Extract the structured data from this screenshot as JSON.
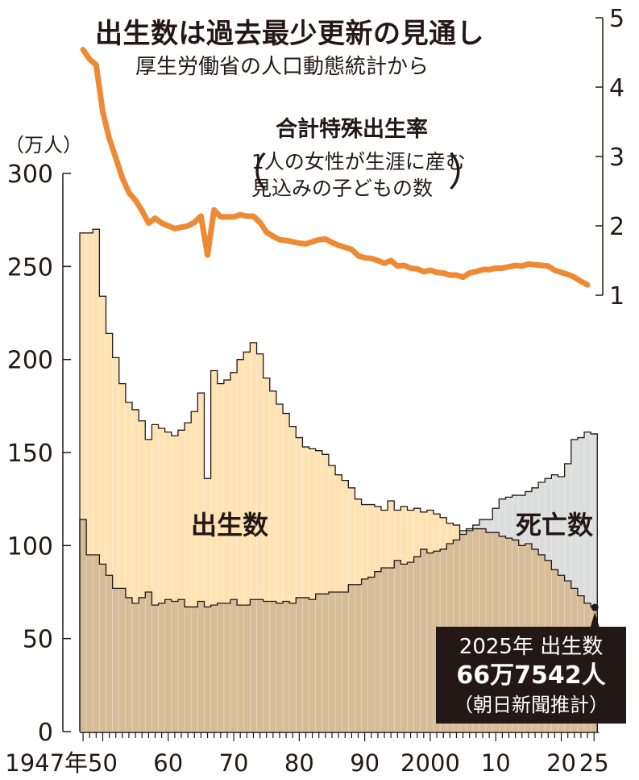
{
  "title": "出生数は過去最少更新の見通し",
  "subtitle": "厚生労働省の人口動態統計から",
  "chart_data": {
    "type": "area",
    "y_unit": "（万人）",
    "ylim_left": [
      0,
      300
    ],
    "yticks_left": [
      "0",
      "50",
      "100",
      "150",
      "200",
      "250",
      "300"
    ],
    "ylim_right": [
      1,
      5
    ],
    "yticks_right": [
      "1",
      "2",
      "3",
      "4",
      "5"
    ],
    "x_tick_years": [
      1947,
      1950,
      1960,
      1970,
      1980,
      1990,
      2000,
      2010,
      2020,
      2025
    ],
    "x_tick_labels": [
      "1947年",
      "50",
      "60",
      "70",
      "80",
      "90",
      "2000",
      "10",
      "20",
      "25"
    ],
    "years": [
      1947,
      1948,
      1949,
      1950,
      1951,
      1952,
      1953,
      1954,
      1955,
      1956,
      1957,
      1958,
      1959,
      1960,
      1961,
      1962,
      1963,
      1964,
      1965,
      1966,
      1967,
      1968,
      1969,
      1970,
      1971,
      1972,
      1973,
      1974,
      1975,
      1976,
      1977,
      1978,
      1979,
      1980,
      1981,
      1982,
      1983,
      1984,
      1985,
      1986,
      1987,
      1988,
      1989,
      1990,
      1991,
      1992,
      1993,
      1994,
      1995,
      1996,
      1997,
      1998,
      1999,
      2000,
      2001,
      2002,
      2003,
      2004,
      2005,
      2006,
      2007,
      2008,
      2009,
      2010,
      2011,
      2012,
      2013,
      2014,
      2015,
      2016,
      2017,
      2018,
      2019,
      2020,
      2021,
      2022,
      2023,
      2024,
      2025
    ],
    "series": [
      {
        "name": "出生数",
        "color": "#fde3b4",
        "values": [
          268,
          268,
          270,
          234,
          214,
          201,
          187,
          177,
          173,
          167,
          157,
          165,
          163,
          161,
          159,
          162,
          166,
          172,
          182,
          136,
          194,
          187,
          189,
          193,
          200,
          204,
          209,
          203,
          190,
          183,
          176,
          171,
          164,
          158,
          153,
          152,
          151,
          149,
          143,
          138,
          135,
          131,
          125,
          122,
          122,
          121,
          119,
          124,
          119,
          121,
          119,
          120,
          118,
          119,
          117,
          115,
          112,
          111,
          106,
          109,
          109,
          109,
          107,
          107,
          105,
          104,
          103,
          100,
          101,
          98,
          95,
          92,
          87,
          84,
          81,
          77,
          73,
          69,
          67
        ]
      },
      {
        "name": "死亡数",
        "color": "#dcdddd",
        "values": [
          114,
          95,
          95,
          90,
          84,
          77,
          77,
          72,
          69,
          72,
          75,
          68,
          69,
          71,
          70,
          71,
          67,
          67,
          70,
          67,
          68,
          69,
          69,
          71,
          68,
          68,
          71,
          71,
          70,
          70,
          69,
          70,
          69,
          72,
          72,
          71,
          74,
          74,
          75,
          75,
          75,
          79,
          79,
          82,
          83,
          86,
          88,
          88,
          92,
          90,
          91,
          94,
          98,
          96,
          97,
          98,
          101,
          103,
          108,
          108,
          111,
          114,
          114,
          120,
          125,
          126,
          127,
          127,
          129,
          131,
          134,
          136,
          138,
          137,
          144,
          157,
          158,
          161,
          160
        ]
      },
      {
        "name": "合計特殊出生率",
        "color": "#ee8a33",
        "axis": "right",
        "values": [
          4.54,
          4.4,
          4.32,
          3.65,
          3.26,
          2.98,
          2.69,
          2.48,
          2.37,
          2.22,
          2.04,
          2.11,
          2.04,
          2.0,
          1.96,
          1.98,
          2.0,
          2.05,
          2.14,
          1.58,
          2.23,
          2.13,
          2.13,
          2.13,
          2.16,
          2.14,
          2.14,
          2.05,
          1.91,
          1.85,
          1.8,
          1.79,
          1.77,
          1.75,
          1.74,
          1.77,
          1.8,
          1.81,
          1.76,
          1.72,
          1.69,
          1.66,
          1.57,
          1.54,
          1.53,
          1.5,
          1.46,
          1.5,
          1.42,
          1.43,
          1.39,
          1.38,
          1.34,
          1.36,
          1.33,
          1.32,
          1.29,
          1.29,
          1.26,
          1.32,
          1.34,
          1.37,
          1.37,
          1.39,
          1.39,
          1.41,
          1.43,
          1.42,
          1.45,
          1.44,
          1.43,
          1.42,
          1.36,
          1.33,
          1.3,
          1.26,
          1.2,
          1.15,
          null
        ]
      }
    ],
    "labels": {
      "births": "出生数",
      "deaths": "死亡数",
      "tfr_title": "合計特殊出生率",
      "tfr_note_line1": "1人の女性が生涯に産む",
      "tfr_note_line2": "見込みの子どもの数",
      "paren_open": "（",
      "paren_close": "）"
    },
    "callout": {
      "year": 2025,
      "value": 66.7542,
      "line1": "2025年 出生数",
      "line2": "66万7542人",
      "line3": "（朝日新聞推計）"
    },
    "grid": false
  }
}
